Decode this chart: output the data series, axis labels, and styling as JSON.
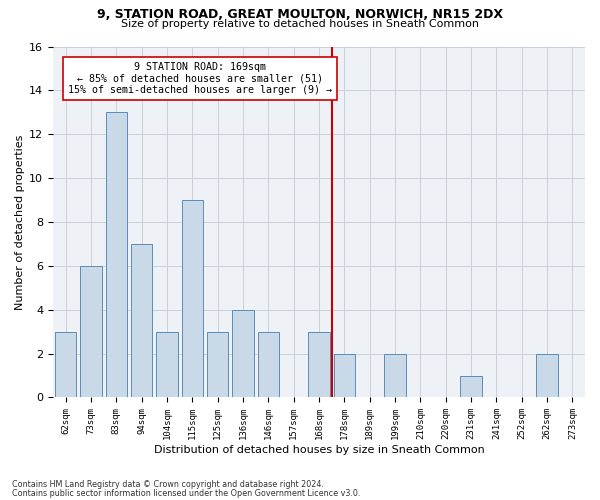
{
  "title1": "9, STATION ROAD, GREAT MOULTON, NORWICH, NR15 2DX",
  "title2": "Size of property relative to detached houses in Sneath Common",
  "xlabel": "Distribution of detached houses by size in Sneath Common",
  "ylabel": "Number of detached properties",
  "categories": [
    "62sqm",
    "73sqm",
    "83sqm",
    "94sqm",
    "104sqm",
    "115sqm",
    "125sqm",
    "136sqm",
    "146sqm",
    "157sqm",
    "168sqm",
    "178sqm",
    "189sqm",
    "199sqm",
    "210sqm",
    "220sqm",
    "231sqm",
    "241sqm",
    "252sqm",
    "262sqm",
    "273sqm"
  ],
  "values": [
    3,
    6,
    13,
    7,
    3,
    9,
    3,
    4,
    3,
    0,
    3,
    2,
    0,
    2,
    0,
    0,
    1,
    0,
    0,
    2,
    0
  ],
  "bar_color": "#c9d9e8",
  "bar_edge_color": "#5b8db8",
  "ref_line_x": 10.5,
  "ref_line_color": "#cc0000",
  "annotation_text": "9 STATION ROAD: 169sqm\n← 85% of detached houses are smaller (51)\n15% of semi-detached houses are larger (9) →",
  "annotation_box_color": "#ffffff",
  "annotation_box_edge": "#cc0000",
  "ylim": [
    0,
    16
  ],
  "yticks": [
    0,
    2,
    4,
    6,
    8,
    10,
    12,
    14,
    16
  ],
  "footnote1": "Contains HM Land Registry data © Crown copyright and database right 2024.",
  "footnote2": "Contains public sector information licensed under the Open Government Licence v3.0.",
  "background_color": "#eef2f7"
}
